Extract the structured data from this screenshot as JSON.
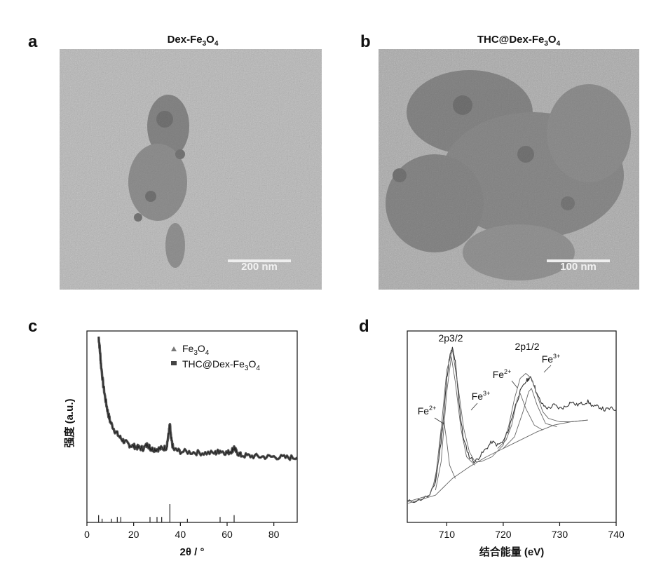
{
  "panels": {
    "a": {
      "letter": "a",
      "title_main": "Dex-Fe",
      "title_sub1": "3",
      "title_mid": "O",
      "title_sub2": "4",
      "scale_text": "200 nm"
    },
    "b": {
      "letter": "b",
      "title_main": "THC@Dex-Fe",
      "title_sub1": "3",
      "title_mid": "O",
      "title_sub2": "4",
      "scale_text": "100 nm"
    },
    "c": {
      "letter": "c"
    },
    "d": {
      "letter": "d"
    }
  },
  "chart_data": [
    {
      "type": "line",
      "panel": "c",
      "xlabel": "2θ / °",
      "ylabel": "强度 (a.u.)",
      "xlim": [
        0,
        90
      ],
      "xticks": [
        0,
        20,
        40,
        60,
        80
      ],
      "yticks": [],
      "legend": {
        "placement": "top-right",
        "entries": [
          {
            "marker": "triangle",
            "name_parts": [
              "Fe",
              "3",
              "O",
              "4"
            ]
          },
          {
            "marker": "square",
            "name_parts": [
              "THC@Dex-Fe",
              "3",
              "O",
              "4"
            ]
          }
        ]
      },
      "series": [
        {
          "name": "THC@Dex-Fe3O4",
          "x": [
            5,
            5.5,
            6,
            7,
            8,
            9,
            10,
            12,
            14,
            16,
            18,
            20,
            22,
            24,
            26,
            27,
            28,
            30,
            32,
            34,
            35,
            35.5,
            36,
            37,
            40,
            45,
            50,
            55,
            57,
            60,
            62,
            63,
            64,
            66,
            70,
            75,
            80,
            85,
            90
          ],
          "y": [
            1.0,
            0.92,
            0.82,
            0.68,
            0.58,
            0.5,
            0.44,
            0.38,
            0.34,
            0.31,
            0.29,
            0.28,
            0.27,
            0.265,
            0.29,
            0.27,
            0.26,
            0.26,
            0.265,
            0.27,
            0.36,
            0.42,
            0.33,
            0.26,
            0.245,
            0.24,
            0.235,
            0.235,
            0.25,
            0.235,
            0.25,
            0.27,
            0.24,
            0.22,
            0.215,
            0.21,
            0.21,
            0.205,
            0.205
          ]
        }
      ],
      "reference_pattern": {
        "name": "Fe3O4",
        "x": [
          5,
          6.5,
          10.5,
          13,
          14.5,
          27,
          30,
          32,
          35.5,
          43,
          57,
          63
        ],
        "intensity": [
          0.4,
          0.2,
          0.2,
          0.3,
          0.3,
          0.3,
          0.3,
          0.3,
          1.0,
          0.2,
          0.3,
          0.4
        ]
      }
    },
    {
      "type": "line",
      "panel": "d",
      "xlabel": "结合能量 (eV)",
      "ylabel": "",
      "xlim": [
        703,
        740
      ],
      "xticks": [
        710,
        720,
        730,
        740
      ],
      "yticks": [],
      "annotations": [
        {
          "label": "2p3/2"
        },
        {
          "label": "2p1/2"
        },
        {
          "label": "Fe",
          "sup": "2+",
          "x": 709.5
        },
        {
          "label": "Fe",
          "sup": "3+",
          "x": 712.8
        },
        {
          "label": "Fe",
          "sup": "2+",
          "x": 722.6
        },
        {
          "label": "Fe",
          "sup": "3+",
          "x": 725.2
        }
      ],
      "series": [
        {
          "name": "measured",
          "x": [
            703,
            705,
            707,
            708,
            709,
            709.5,
            710,
            710.5,
            711,
            711.5,
            712,
            712.5,
            713,
            714,
            715,
            716,
            717,
            718,
            719,
            720,
            721,
            722,
            723,
            724,
            724.5,
            725,
            725.5,
            726,
            727,
            728,
            729,
            730,
            731,
            732,
            733,
            734,
            735,
            736,
            737,
            738,
            739,
            740
          ],
          "y": [
            0.06,
            0.07,
            0.1,
            0.18,
            0.42,
            0.6,
            0.8,
            0.93,
            0.98,
            0.9,
            0.72,
            0.55,
            0.43,
            0.33,
            0.3,
            0.34,
            0.38,
            0.42,
            0.4,
            0.42,
            0.5,
            0.62,
            0.72,
            0.78,
            0.8,
            0.8,
            0.76,
            0.7,
            0.64,
            0.62,
            0.64,
            0.62,
            0.63,
            0.66,
            0.64,
            0.65,
            0.66,
            0.63,
            0.63,
            0.61,
            0.62,
            0.61
          ]
        },
        {
          "name": "fit-envelope",
          "x": [
            703,
            707,
            708,
            709,
            710,
            711,
            712,
            713,
            714,
            715,
            716,
            718,
            720,
            721,
            722,
            723,
            724,
            725,
            726,
            727,
            728,
            730,
            732,
            735
          ],
          "y": [
            0.06,
            0.1,
            0.2,
            0.5,
            0.85,
            0.97,
            0.75,
            0.5,
            0.36,
            0.3,
            0.3,
            0.33,
            0.4,
            0.52,
            0.68,
            0.8,
            0.83,
            0.8,
            0.7,
            0.6,
            0.56,
            0.54,
            0.54,
            0.55
          ]
        },
        {
          "name": "background",
          "x": [
            703,
            708,
            711,
            714,
            717,
            720,
            723,
            726,
            729,
            732,
            735
          ],
          "y": [
            0.05,
            0.1,
            0.2,
            0.27,
            0.33,
            0.38,
            0.43,
            0.48,
            0.52,
            0.54,
            0.55
          ]
        },
        {
          "name": "peak-Fe2+-2p3/2",
          "x": [
            707.5,
            708.5,
            709,
            709.5,
            710,
            710.5,
            711.5
          ],
          "y": [
            0.14,
            0.3,
            0.48,
            0.54,
            0.42,
            0.28,
            0.2
          ]
        },
        {
          "name": "peak-Fe3+-2p3/2",
          "x": [
            708,
            709,
            710,
            710.8,
            711.5,
            712.5,
            713.5,
            715
          ],
          "y": [
            0.13,
            0.3,
            0.72,
            0.93,
            0.78,
            0.5,
            0.33,
            0.28
          ]
        },
        {
          "name": "peak-Fe2+-2p1/2",
          "x": [
            719,
            720.5,
            721.5,
            722.5,
            723,
            724,
            725.5,
            727
          ],
          "y": [
            0.38,
            0.43,
            0.52,
            0.68,
            0.71,
            0.62,
            0.52,
            0.49
          ]
        },
        {
          "name": "peak-Fe3+-2p1/2",
          "x": [
            720,
            722,
            723.5,
            724.5,
            725,
            726,
            727.5,
            729.5
          ],
          "y": [
            0.38,
            0.45,
            0.6,
            0.72,
            0.74,
            0.64,
            0.53,
            0.51
          ]
        }
      ]
    }
  ]
}
